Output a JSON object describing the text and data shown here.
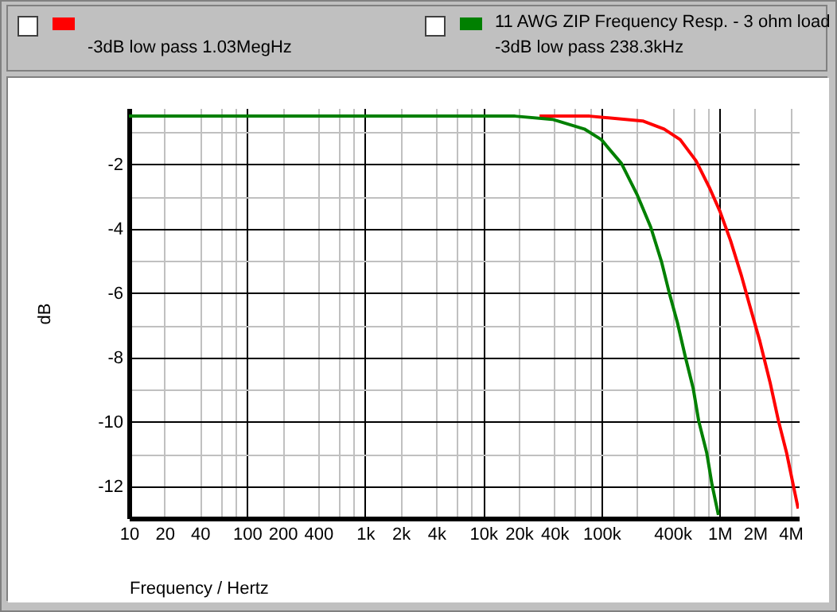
{
  "chart_data": {
    "type": "line",
    "xlabel": "Frequency / Hertz",
    "ylabel": "dB",
    "log": "x",
    "grid": true,
    "legend": "top",
    "annotations": [
      "-3dB low pass   1.03MegHz",
      "-3dB low pass   238.3kHz"
    ],
    "xlim": [
      10,
      4700000
    ],
    "ylim": [
      -13,
      -0.25
    ],
    "xticks": [
      10,
      {
        "value": 20,
        "label": "20"
      },
      {
        "value": 40,
        "label": "40"
      },
      {
        "value": 60,
        "label": null
      },
      {
        "value": 80,
        "label": null
      },
      100,
      200,
      400,
      {
        "value": 600,
        "label": null
      },
      {
        "value": 800,
        "label": null
      },
      {
        "value": 1000,
        "label": "1k"
      },
      {
        "value": 2000,
        "label": "2k"
      },
      {
        "value": 4000,
        "label": "4k"
      },
      {
        "value": 6000,
        "label": null
      },
      {
        "value": 8000,
        "label": null
      },
      {
        "value": 10000,
        "label": "10k"
      },
      {
        "value": 20000,
        "label": "20k"
      },
      {
        "value": 40000,
        "label": "40k"
      },
      {
        "value": 60000,
        "label": null
      },
      {
        "value": 80000,
        "label": null
      },
      {
        "value": 100000,
        "label": "100k"
      },
      {
        "value": 200000,
        "label": null
      },
      {
        "value": 400000,
        "label": "400k"
      },
      {
        "value": 600000,
        "label": null
      },
      {
        "value": 800000,
        "label": null
      },
      {
        "value": 1000000,
        "label": "1M"
      },
      {
        "value": 2000000,
        "label": "2M"
      },
      {
        "value": 4000000,
        "label": "4M"
      }
    ],
    "yticks": [
      {
        "value": -1,
        "label": null
      },
      -2,
      {
        "value": -3,
        "label": null
      },
      -4,
      {
        "value": -5,
        "label": null
      },
      -6,
      {
        "value": -7,
        "label": null
      },
      -8,
      {
        "value": -9,
        "label": null
      },
      -10,
      {
        "value": -11,
        "label": null
      },
      -12
    ],
    "series": [
      {
        "color": "#ff0000",
        "x": [
          30000,
          79600,
          224000,
          340000,
          465000,
          634000,
          820000,
          1010000,
          1240000,
          1530000,
          1790000,
          2200000,
          2700000,
          3160000,
          3700000,
          4300000,
          4640000
        ],
        "values": [
          -0.5,
          -0.5,
          -0.65,
          -0.9,
          -1.23,
          -1.89,
          -2.71,
          -3.46,
          -4.36,
          -5.44,
          -6.34,
          -7.5,
          -8.82,
          -9.97,
          -10.96,
          -12.12,
          -12.7
        ]
      },
      {
        "name": "11 AWG ZIP Frequency Resp. - 3 ohm load",
        "color": "#008000",
        "x": [
          10,
          18600,
          38500,
          71800,
          100000,
          148000,
          202000,
          262000,
          323000,
          377000,
          441000,
          515000,
          601000,
          667000,
          780000,
          865000,
          980000
        ],
        "values": [
          -0.5,
          -0.5,
          -0.6,
          -0.9,
          -1.23,
          -1.97,
          -2.96,
          -3.95,
          -5.02,
          -6.01,
          -6.92,
          -7.99,
          -8.98,
          -9.97,
          -10.96,
          -11.95,
          -12.9
        ]
      }
    ]
  }
}
